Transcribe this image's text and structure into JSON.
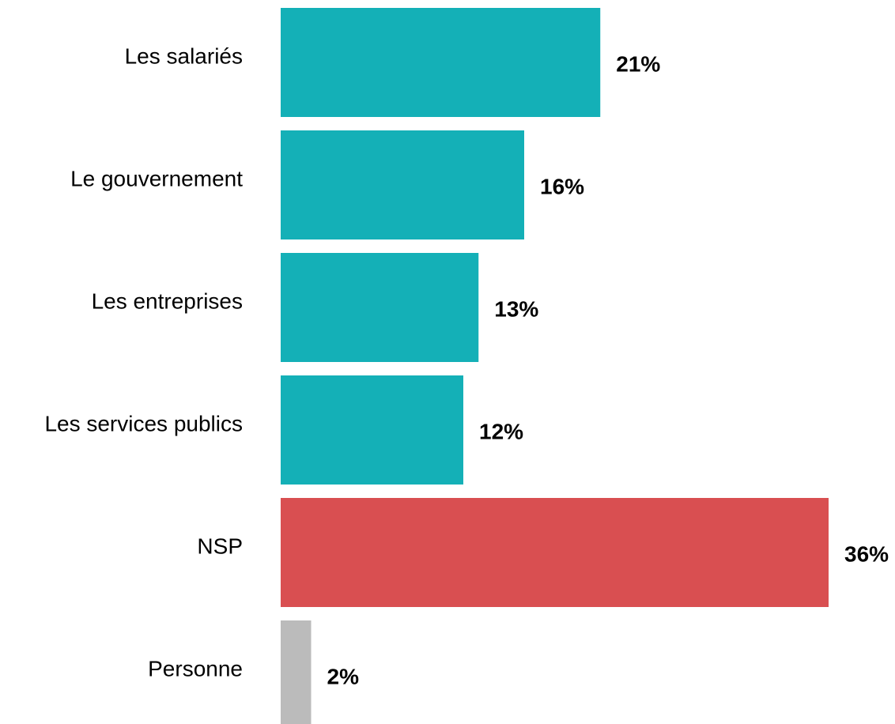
{
  "chart_data": {
    "type": "bar",
    "orientation": "horizontal",
    "categories": [
      "Les salariés",
      "Le gouvernement",
      "Les entreprises",
      "Les services publics",
      "NSP",
      "Personne"
    ],
    "values": [
      21,
      16,
      13,
      12,
      36,
      2
    ],
    "value_labels": [
      "21%",
      "16%",
      "13%",
      "12%",
      "36%",
      "2%"
    ],
    "colors": [
      "#14b0b7",
      "#14b0b7",
      "#14b0b7",
      "#14b0b7",
      "#d94f51",
      "#bbbbbb"
    ]
  }
}
